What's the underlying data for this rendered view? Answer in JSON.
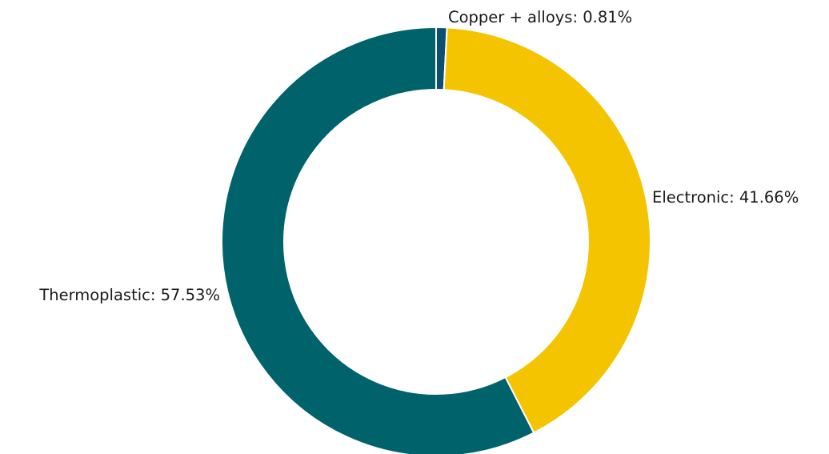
{
  "chart_data": {
    "type": "pie",
    "title": "",
    "donut": true,
    "slices": [
      {
        "label": "Copper + alloys",
        "value": 0.81,
        "display": "Copper + alloys: 0.81%",
        "color": "#0b4f72"
      },
      {
        "label": "Electronic",
        "value": 41.66,
        "display": "Electronic: 41.66%",
        "color": "#f5c400"
      },
      {
        "label": "Thermoplastic",
        "value": 57.53,
        "display": "Thermoplastic: 57.53%",
        "color": "#00636b"
      }
    ]
  }
}
